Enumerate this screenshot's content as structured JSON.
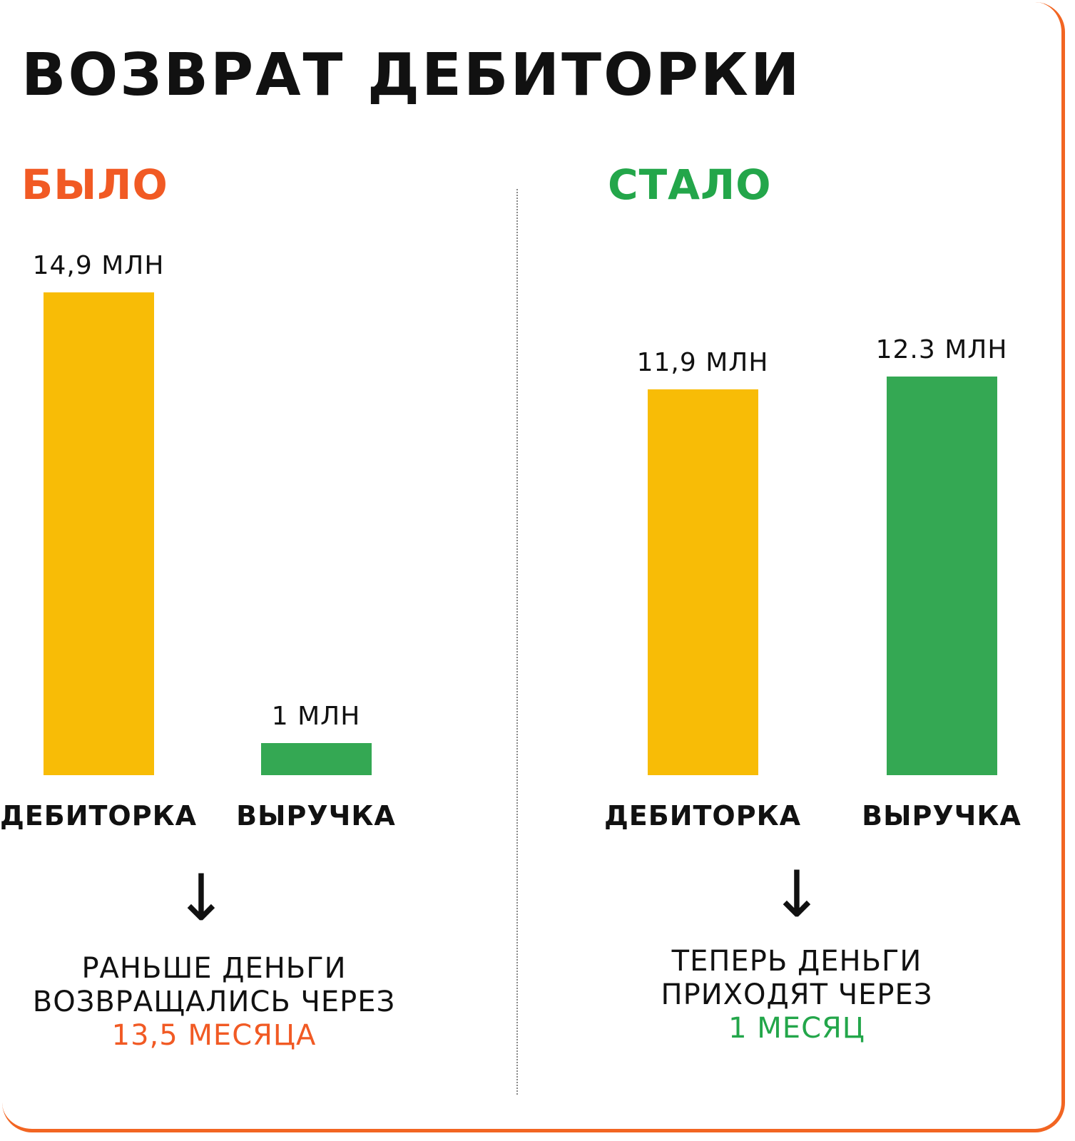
{
  "title": "ВОЗВРАТ ДЕБИТОРКИ",
  "colors": {
    "before": "#f15a24",
    "after": "#23a64a",
    "receivables_bar": "#f8bc06",
    "revenue_bar": "#34a853",
    "border": "#f26522"
  },
  "chart_data": [
    {
      "type": "bar",
      "title": "БЫЛО",
      "categories": [
        "ДЕБИТОРКА",
        "ВЫРУЧКА"
      ],
      "values": [
        14.9,
        1
      ],
      "data_labels": [
        "14,9 МЛН",
        "1 МЛН"
      ],
      "ylim": [
        0,
        14.9
      ],
      "grid": false
    },
    {
      "type": "bar",
      "title": "СТАЛО",
      "categories": [
        "ДЕБИТОРКА",
        "ВЫРУЧКА"
      ],
      "values": [
        11.9,
        12.3
      ],
      "data_labels": [
        "11,9 МЛН",
        "12.3 МЛН"
      ],
      "ylim": [
        0,
        14.9
      ],
      "grid": false
    }
  ],
  "notes": {
    "before": {
      "arrow": "↓",
      "line1": "РАНЬШЕ ДЕНЬГИ",
      "line2": "ВОЗВРАЩАЛИСЬ ЧЕРЕЗ",
      "highlight": "13,5 МЕСЯЦА"
    },
    "after": {
      "arrow": "↓",
      "line1": "ТЕПЕРЬ ДЕНЬГИ",
      "line2": "ПРИХОДЯТ ЧЕРЕЗ",
      "highlight": "1 МЕСЯЦ"
    }
  }
}
